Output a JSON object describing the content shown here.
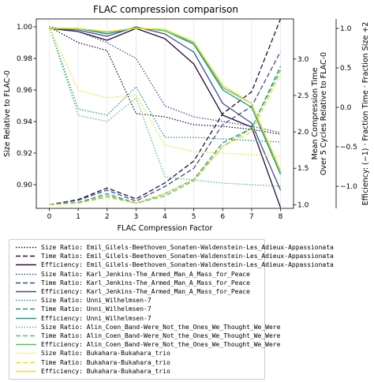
{
  "chart_data": {
    "type": "line",
    "title": "FLAC compression comparison",
    "xlabel": "FLAC Compression Factor",
    "ylabel_left": "Size Relative to FLAC-0",
    "ylabel_mid": [
      "Mean Compression Time",
      "Over 5 Cycles Relative to FLAC-0"
    ],
    "ylabel_right": "Efficiency: (−1) · Fraction Time · Fraction Size +2",
    "x": [
      0,
      1,
      2,
      3,
      4,
      5,
      6,
      7,
      8
    ],
    "xlim": [
      -0.45,
      8.45
    ],
    "ylim_left": [
      0.885,
      1.005
    ],
    "ylim_mid": [
      0.95,
      3.55
    ],
    "ylim_right": [
      -1.28,
      1.12
    ],
    "left_ticks": [
      "0.90",
      "0.92",
      "0.94",
      "0.96",
      "0.98",
      "1.00"
    ],
    "mid_ticks": [
      "1.0",
      "1.5",
      "2.0",
      "2.5",
      "3.0"
    ],
    "right_ticks": [
      "−1.0",
      "−0.5",
      "0.0",
      "0.5",
      "1.0"
    ],
    "x_ticks": [
      "0",
      "1",
      "2",
      "3",
      "4",
      "5",
      "6",
      "7",
      "8"
    ],
    "grid": "vertical",
    "legend_position": "below",
    "groups": [
      {
        "color": "#2a0a3d",
        "size_ratio": {
          "name": "Size Ratio: Emil_Gilels-Beethoven_Sonaten-Waldenstein-Les_Adieux-Appassionata",
          "values": [
            1.0,
            0.99,
            0.985,
            0.945,
            0.943,
            0.938,
            0.937,
            0.935,
            0.932
          ]
        },
        "time_ratio": {
          "name": "Time Ratio: Emil_Gilels-Beethoven_Sonaten-Waldenstein-Les_Adieux-Appassionata",
          "values": [
            1.0,
            1.07,
            1.23,
            1.08,
            1.3,
            1.6,
            2.25,
            2.55,
            3.55
          ]
        },
        "efficiency": {
          "name": "Efficiency: Emil_Gilels-Beethoven_Sonaten-Waldenstein-Les_Adieux-Appassionata",
          "values": [
            1.0,
            0.96,
            0.85,
            1.0,
            0.87,
            0.55,
            -0.1,
            -0.25,
            -1.27
          ]
        }
      },
      {
        "color": "#3b4f8a",
        "size_ratio": {
          "name": "Size Ratio: Karl_Jenkins-The_Armed_Man_A_Mass_for_Peace",
          "values": [
            1.0,
            0.997,
            0.99,
            0.98,
            0.95,
            0.943,
            0.94,
            0.937,
            0.933
          ]
        },
        "time_ratio": {
          "name": "Time Ratio: Karl_Jenkins-The_Armed_Man_A_Mass_for_Peace",
          "values": [
            1.0,
            1.06,
            1.2,
            1.05,
            1.25,
            1.5,
            2.1,
            2.35,
            3.1
          ]
        },
        "efficiency": {
          "name": "Efficiency: Karl_Jenkins-The_Armed_Man_A_Mass_for_Peace",
          "values": [
            1.0,
            0.98,
            0.9,
            1.02,
            0.93,
            0.7,
            0.05,
            -0.2,
            -1.05
          ]
        }
      },
      {
        "color": "#2a8e8c",
        "size_ratio": {
          "name": "Size Ratio: Unni_Wilhelmsen-7",
          "values": [
            1.0,
            0.948,
            0.944,
            0.962,
            0.93,
            0.93,
            0.929,
            0.928,
            0.927
          ]
        },
        "time_ratio": {
          "name": "Time Ratio: Unni_Wilhelmsen-7",
          "values": [
            1.0,
            1.03,
            1.15,
            1.02,
            1.15,
            1.35,
            1.85,
            2.05,
            2.9
          ]
        },
        "efficiency": {
          "name": "Efficiency: Unni_Wilhelmsen-7",
          "values": [
            1.0,
            1.0,
            0.93,
            1.01,
            0.97,
            0.8,
            0.22,
            0.0,
            -0.85
          ]
        }
      },
      {
        "color": "#55c46a",
        "size_ratio": {
          "name": "Size Ratio: Alin_Coen_Band-Were_Not_the_Ones_We_Thought_We_Were",
          "values": [
            1.0,
            0.944,
            0.94,
            0.955,
            0.905,
            0.903,
            0.901,
            0.9,
            0.899
          ]
        },
        "time_ratio": {
          "name": "Time Ratio: Alin_Coen_Band-Were_Not_the_Ones_We_Thought_We_Were",
          "values": [
            1.0,
            1.02,
            1.12,
            1.02,
            1.12,
            1.33,
            1.8,
            2.05,
            2.85
          ]
        },
        "efficiency": {
          "name": "Efficiency: Alin_Coen_Band-Were_Not_the_Ones_We_Thought_We_Were",
          "values": [
            1.0,
            1.0,
            0.95,
            1.01,
            0.97,
            0.82,
            0.25,
            0.05,
            -0.83
          ]
        }
      },
      {
        "color": "#f0dc2a",
        "size_ratio": {
          "name": "Size Ratio: Bukahara-Bukahara_trio",
          "values": [
            1.0,
            0.96,
            0.955,
            0.957,
            0.925,
            0.921,
            0.92,
            0.919,
            0.918
          ]
        },
        "time_ratio": {
          "name": "Time Ratio: Bukahara-Bukahara_trio",
          "values": [
            1.0,
            1.02,
            1.1,
            1.02,
            1.15,
            1.35,
            1.8,
            2.0,
            2.8
          ]
        },
        "efficiency": {
          "name": "Efficiency: Bukahara-Bukahara_trio",
          "values": [
            1.0,
            1.0,
            0.96,
            1.0,
            0.99,
            0.83,
            0.28,
            0.05,
            -0.8
          ]
        }
      }
    ]
  }
}
